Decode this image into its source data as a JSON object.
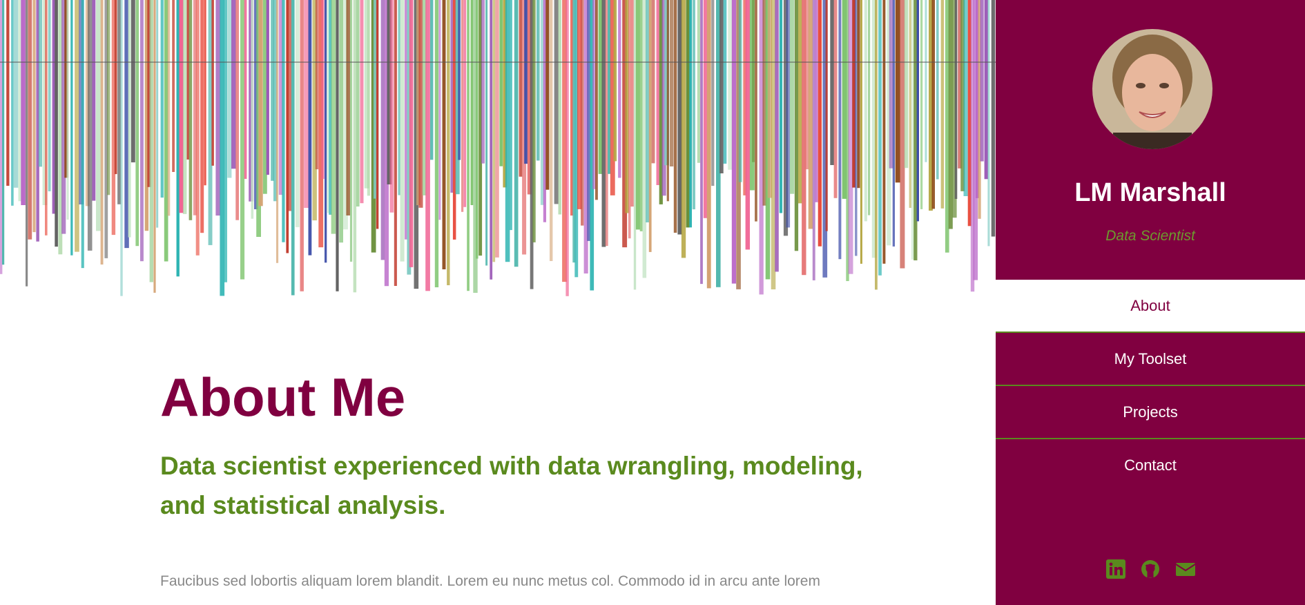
{
  "sidebar": {
    "name": "LM Marshall",
    "role": "Data Scientist",
    "nav": [
      "About",
      "My Toolset",
      "Projects",
      "Contact"
    ]
  },
  "main": {
    "title": "About Me",
    "subtitle": "Data scientist experienced with data wrangling, modeling, and statistical analysis.",
    "paragraph": "Faucibus sed lobortis aliquam lorem blandit. Lorem eu nunc metus col. Commodo id in arcu ante lorem"
  }
}
